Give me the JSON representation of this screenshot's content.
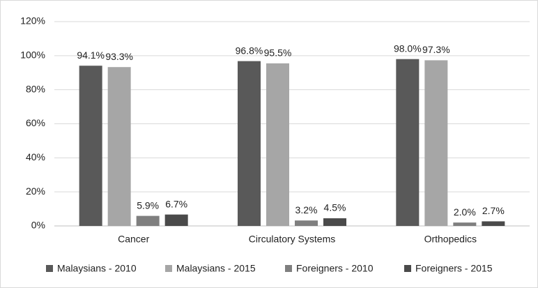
{
  "chart_data": {
    "type": "bar",
    "categories": [
      "Cancer",
      "Circulatory Systems",
      "Orthopedics"
    ],
    "series": [
      {
        "name": "Malaysians - 2010",
        "color": "#595959",
        "values": [
          94.1,
          96.8,
          98.0
        ],
        "value_labels": [
          "94.1%",
          "96.8%",
          "98.0%"
        ]
      },
      {
        "name": "Malaysians - 2015",
        "color": "#a6a6a6",
        "values": [
          93.3,
          95.5,
          97.3
        ],
        "value_labels": [
          "93.3%",
          "95.5%",
          "97.3%"
        ]
      },
      {
        "name": "Foreigners - 2010",
        "color": "#7f7f7f",
        "values": [
          5.9,
          3.2,
          2.0
        ],
        "value_labels": [
          "5.9%",
          "3.2%",
          "2.0%"
        ]
      },
      {
        "name": "Foreigners - 2015",
        "color": "#4a4a4a",
        "values": [
          6.7,
          4.5,
          2.7
        ],
        "value_labels": [
          "6.7%",
          "4.5%",
          "2.7%"
        ]
      }
    ],
    "ylim": [
      0,
      120
    ],
    "yticks": [
      {
        "value": 0,
        "label": "0%"
      },
      {
        "value": 20,
        "label": "20%"
      },
      {
        "value": 40,
        "label": "40%"
      },
      {
        "value": 60,
        "label": "60%"
      },
      {
        "value": 80,
        "label": "80%"
      },
      {
        "value": 100,
        "label": "100%"
      },
      {
        "value": 120,
        "label": "120%"
      }
    ],
    "grid": true,
    "legend": "bottom"
  }
}
